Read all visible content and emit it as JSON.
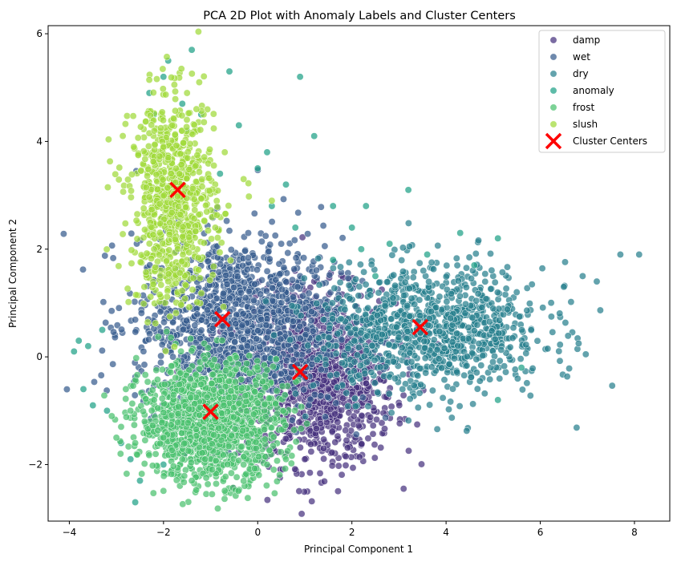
{
  "chart_data": {
    "type": "scatter",
    "title": "PCA 2D Plot with Anomaly Labels and Cluster Centers",
    "xlabel": "Principal Component 1",
    "ylabel": "Principal Component 2",
    "xlim": [
      -4.45,
      8.75
    ],
    "ylim": [
      -3.05,
      6.15
    ],
    "xticks": [
      -4,
      -2,
      0,
      2,
      4,
      6,
      8
    ],
    "yticks": [
      -2,
      0,
      2,
      4,
      6
    ],
    "grid": false,
    "legend_position": "top-right",
    "series": [
      {
        "name": "damp",
        "color": "#46327e",
        "center": [
          1.3,
          -0.4
        ],
        "spread": [
          0.8,
          0.8
        ],
        "n": 1100,
        "extra": [
          [
            1.0,
            -1.9
          ],
          [
            0.6,
            -1.8
          ],
          [
            1.4,
            -1.7
          ],
          [
            2.0,
            -0.7
          ],
          [
            1.2,
            1.4
          ],
          [
            0.4,
            1.2
          ]
        ]
      },
      {
        "name": "wet",
        "color": "#365c8d",
        "center": [
          -0.4,
          0.6
        ],
        "spread": [
          1.1,
          0.8
        ],
        "n": 1300,
        "extra": [
          [
            -2.0,
            1.0
          ],
          [
            -1.8,
            0.0
          ],
          [
            0.9,
            1.5
          ],
          [
            -0.2,
            2.3
          ],
          [
            0.5,
            2.1
          ]
        ]
      },
      {
        "name": "dry",
        "color": "#277f8e",
        "center": [
          3.7,
          0.5
        ],
        "spread": [
          1.2,
          0.6
        ],
        "n": 1000,
        "extra": [
          [
            6.5,
            1.3
          ],
          [
            7.2,
            1.4
          ],
          [
            7.7,
            1.9
          ],
          [
            8.1,
            1.9
          ],
          [
            5.5,
            1.2
          ],
          [
            6.9,
            1.5
          ],
          [
            5.0,
            0.9
          ]
        ]
      },
      {
        "name": "anomaly",
        "color": "#1fa187",
        "center": [
          0.0,
          0.0
        ],
        "spread": [
          0.0,
          0.0
        ],
        "n": 0,
        "extra": [
          [
            -3.8,
            0.3
          ],
          [
            -3.9,
            0.1
          ],
          [
            -3.7,
            -0.6
          ],
          [
            -3.5,
            -0.9
          ],
          [
            -3.6,
            0.2
          ],
          [
            -3.3,
            0.5
          ],
          [
            -2.6,
            -2.7
          ],
          [
            -2.5,
            -2.3
          ],
          [
            -2.7,
            -1.9
          ],
          [
            -2.9,
            -1.6
          ],
          [
            -2.3,
            4.9
          ],
          [
            -2.0,
            5.2
          ],
          [
            -1.9,
            5.5
          ],
          [
            -1.6,
            4.7
          ],
          [
            -1.2,
            4.5
          ],
          [
            -0.6,
            5.3
          ],
          [
            -0.4,
            4.3
          ],
          [
            0.2,
            3.8
          ],
          [
            0.6,
            3.2
          ],
          [
            0.9,
            5.2
          ],
          [
            1.2,
            4.1
          ],
          [
            1.6,
            2.8
          ],
          [
            2.3,
            2.8
          ],
          [
            3.2,
            3.1
          ],
          [
            2.5,
            1.5
          ],
          [
            2.8,
            2.1
          ],
          [
            4.3,
            2.3
          ],
          [
            5.1,
            2.2
          ],
          [
            5.1,
            -0.8
          ],
          [
            5.6,
            -0.2
          ],
          [
            1.6,
            1.8
          ],
          [
            0.3,
            2.8
          ],
          [
            -1.4,
            5.7
          ],
          [
            -2.2,
            4.5
          ],
          [
            -0.8,
            3.4
          ],
          [
            0.0,
            3.5
          ],
          [
            3.6,
            1.9
          ],
          [
            4.6,
            1.7
          ],
          [
            2.0,
            2.4
          ],
          [
            -3.2,
            -1.0
          ],
          [
            -2.0,
            -2.0
          ],
          [
            -1.5,
            4.2
          ],
          [
            0.8,
            2.4
          ],
          [
            2.2,
            2.0
          ]
        ]
      },
      {
        "name": "frost",
        "color": "#4ac16d",
        "center": [
          -1.0,
          -1.2
        ],
        "spread": [
          0.75,
          0.55
        ],
        "n": 1300,
        "extra": [
          [
            -2.9,
            -1.3
          ],
          [
            -3.1,
            -1.1
          ],
          [
            -2.6,
            -1.6
          ],
          [
            -2.4,
            -1.2
          ],
          [
            -2.2,
            -0.8
          ],
          [
            -2.8,
            -0.6
          ],
          [
            -2.0,
            -1.5
          ],
          [
            -1.6,
            -1.9
          ],
          [
            -1.4,
            -2.3
          ],
          [
            -3.0,
            -1.5
          ],
          [
            -2.7,
            -1.0
          ],
          [
            -0.3,
            -2.0
          ],
          [
            0.2,
            -2.0
          ],
          [
            0.6,
            -1.9
          ]
        ]
      },
      {
        "name": "slush",
        "color": "#a0da39",
        "center": [
          -1.8,
          2.9
        ],
        "spread": [
          0.45,
          0.95
        ],
        "n": 750,
        "extra": [
          [
            -1.5,
            4.9
          ],
          [
            -2.0,
            3.9
          ],
          [
            -1.3,
            4.6
          ],
          [
            -0.7,
            3.8
          ],
          [
            -0.3,
            3.3
          ],
          [
            0.3,
            2.9
          ],
          [
            -0.9,
            2.4
          ],
          [
            -2.2,
            2.0
          ],
          [
            -1.9,
            1.4
          ]
        ]
      }
    ],
    "cluster_centers": {
      "name": "Cluster Centers",
      "color": "#ff0000",
      "points": [
        [
          -1.7,
          3.1
        ],
        [
          -0.75,
          0.7
        ],
        [
          0.9,
          -0.28
        ],
        [
          3.45,
          0.55
        ],
        [
          -1.0,
          -1.02
        ]
      ]
    }
  }
}
